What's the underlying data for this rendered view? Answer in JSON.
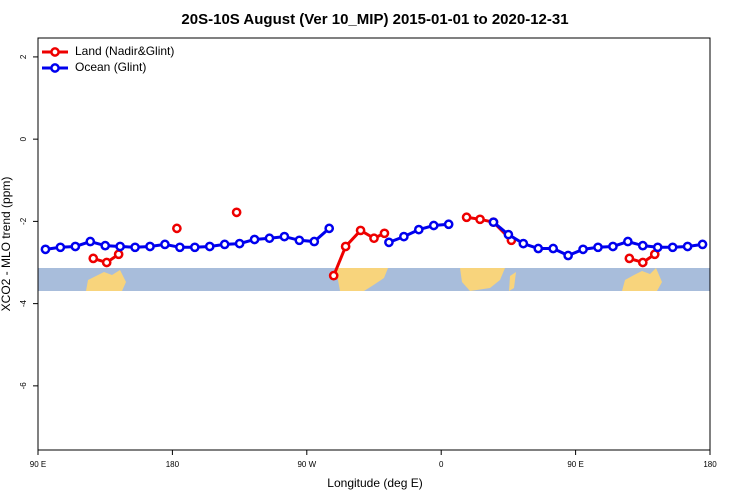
{
  "chart_data": {
    "type": "line",
    "title": "20S-10S August (Ver 10_MIP)   2015-01-01 to 2020-12-31",
    "x_label": "Longitude (deg E)",
    "y_label": "XCO2 - MLO trend (ppm)",
    "xlim": [
      90,
      540
    ],
    "ylim": [
      -7.56,
      2.46
    ],
    "xticks": [
      {
        "value": 90,
        "label": "90 E"
      },
      180,
      {
        "value": 270,
        "label": "90 W"
      },
      {
        "value": 360,
        "label": "0"
      },
      {
        "value": 450,
        "label": "90 E"
      },
      180
    ],
    "yticks": [
      2,
      0,
      -2,
      -4,
      -6
    ],
    "legend": "top-left",
    "series": [
      {
        "name": "Land (Nadir&Glint)",
        "color": "#ee0000",
        "x": [
          127,
          136,
          144,
          160,
          183,
          200,
          223,
          260,
          288,
          296,
          306,
          315,
          322,
          350,
          377,
          386,
          395,
          407,
          450,
          486,
          495,
          503
        ],
        "values": [
          -2.9,
          -3.0,
          -2.8,
          null,
          -2.17,
          null,
          -1.78,
          null,
          -3.32,
          -2.61,
          -2.22,
          -2.41,
          -2.29,
          null,
          -1.9,
          -1.95,
          -2.02,
          -2.46,
          null,
          -2.9,
          -3.0,
          -2.8
        ]
      },
      {
        "name": "Ocean (Glint)",
        "color": "#0000ee",
        "x": [
          95,
          105,
          115,
          125,
          135,
          145,
          155,
          165,
          175,
          185,
          195,
          205,
          215,
          225,
          235,
          245,
          255,
          265,
          275,
          285,
          295,
          305,
          315,
          325,
          335,
          345,
          355,
          365,
          375,
          385,
          395,
          405,
          415,
          425,
          435,
          445,
          455,
          465,
          475,
          485,
          495,
          505,
          515,
          525,
          535
        ],
        "values": [
          -2.68,
          -2.63,
          -2.61,
          -2.49,
          -2.59,
          -2.61,
          -2.63,
          -2.61,
          -2.56,
          -2.63,
          -2.63,
          -2.61,
          -2.56,
          -2.54,
          -2.44,
          -2.41,
          -2.37,
          -2.46,
          -2.49,
          -2.17,
          null,
          null,
          null,
          -2.51,
          -2.37,
          -2.2,
          -2.1,
          -2.07,
          null,
          null,
          -2.02,
          -2.32,
          -2.54,
          -2.66,
          -2.66,
          -2.83,
          -2.68,
          -2.63,
          -2.61,
          -2.49,
          -2.59,
          -2.63,
          -2.63,
          -2.61,
          -2.56
        ]
      }
    ]
  }
}
